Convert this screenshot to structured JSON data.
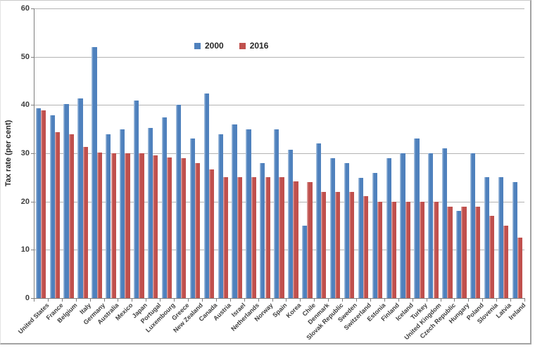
{
  "chart_data": {
    "type": "bar",
    "title": "",
    "xlabel": "",
    "ylabel": "Tax rate (per cent)",
    "ylim": [
      0,
      60
    ],
    "yticks": [
      0,
      10,
      20,
      30,
      40,
      50,
      60
    ],
    "grid": true,
    "legend_position": "top-center",
    "categories": [
      "United States",
      "France",
      "Belgium",
      "Italy",
      "Germany",
      "Australia",
      "Mexico",
      "Japan",
      "Portugal",
      "Luxembourg",
      "Greece",
      "New Zealand",
      "Canada",
      "Austria",
      "Israel",
      "Netherlands",
      "Norway",
      "Spain",
      "Korea",
      "Chile",
      "Denmark",
      "Slovak Republic",
      "Sweden",
      "Switzerland",
      "Estonia",
      "Finland",
      "Iceland",
      "Turkey",
      "United Kingdom",
      "Czech Republic",
      "Hungary",
      "Poland",
      "Slovenia",
      "Latvia",
      "Ireland"
    ],
    "series": [
      {
        "name": "2000",
        "color": "#4F81BD",
        "values": [
          39.3,
          37.8,
          40.2,
          41.3,
          52,
          34,
          35,
          40.9,
          35.2,
          37.5,
          40,
          33,
          42.4,
          34,
          36,
          35,
          28,
          35,
          30.8,
          15,
          32,
          29,
          28,
          24.9,
          26,
          29,
          30,
          33,
          30,
          31,
          18,
          30,
          25,
          25,
          24
        ]
      },
      {
        "name": "2016",
        "color": "#C0504D",
        "values": [
          38.9,
          34.4,
          34,
          31.3,
          30.2,
          30,
          30,
          30,
          29.5,
          29.2,
          29,
          28,
          26.7,
          25,
          25,
          25,
          25,
          25,
          24.2,
          24,
          22,
          22,
          22,
          21.1,
          20,
          20,
          20,
          20,
          20,
          19,
          19,
          19,
          17,
          15,
          12.5
        ]
      }
    ]
  },
  "colors": {
    "background": "#ffffff",
    "gridline": "#b3b3b3",
    "axis": "#7f7f7f",
    "tick_text": "#3f3f3f",
    "series_2000": "#4F81BD",
    "series_2016": "#C0504D"
  }
}
